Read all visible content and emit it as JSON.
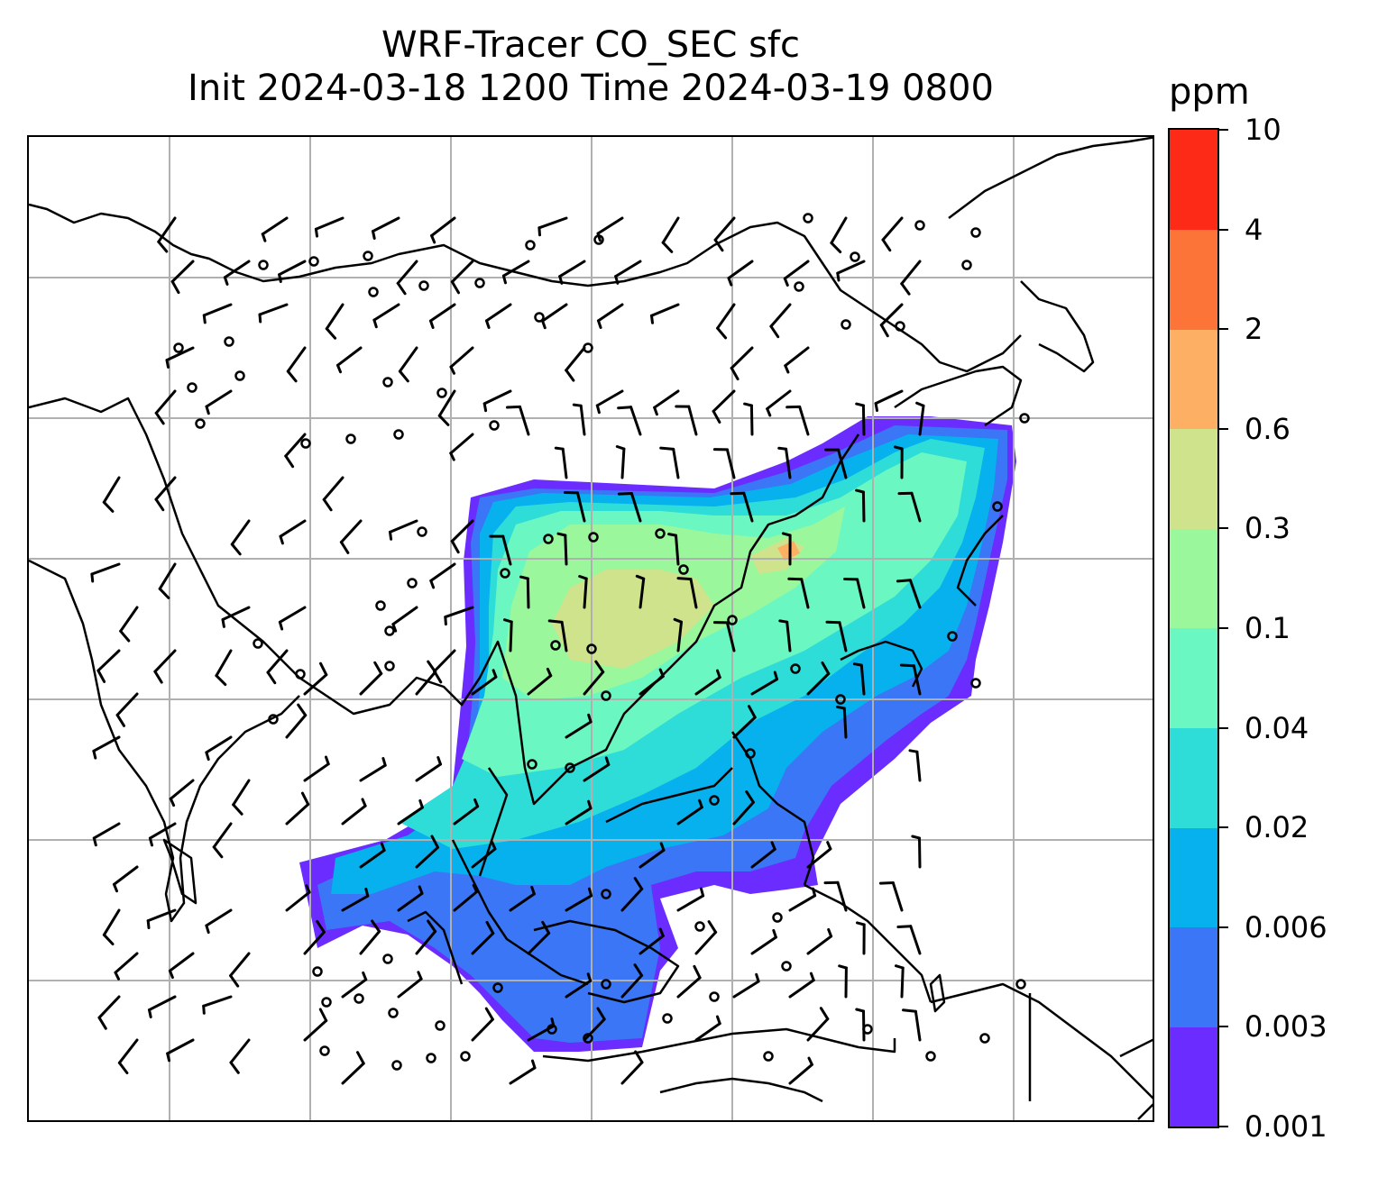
{
  "title": {
    "line1": "WRF-Tracer CO_SEC sfc",
    "line2": "Init 2024-03-18 1200 Time 2024-03-19 0800"
  },
  "colorbar": {
    "units": "ppm",
    "levels": [
      "0.001",
      "0.003",
      "0.006",
      "0.02",
      "0.04",
      "0.1",
      "0.3",
      "0.6",
      "2",
      "4",
      "10"
    ],
    "colors": [
      "#6a2cff",
      "#3a76f5",
      "#06b1ee",
      "#2edcd8",
      "#6bf7c1",
      "#9bf79c",
      "#cfe28c",
      "#fdb063",
      "#fd7439",
      "#fc2a17"
    ]
  },
  "map": {
    "gridlines": true,
    "features": [
      "coastlines",
      "country-borders",
      "wind-barbs",
      "co-tracer-shading"
    ]
  }
}
